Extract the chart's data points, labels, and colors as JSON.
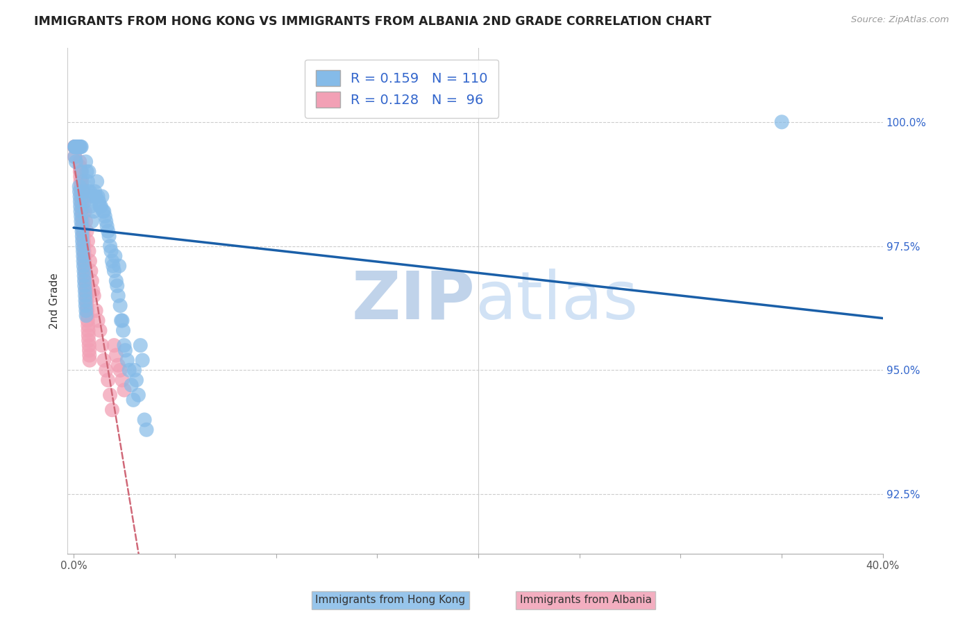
{
  "title": "IMMIGRANTS FROM HONG KONG VS IMMIGRANTS FROM ALBANIA 2ND GRADE CORRELATION CHART",
  "source": "Source: ZipAtlas.com",
  "ylabel": "2nd Grade",
  "xlim": [
    -0.3,
    40.0
  ],
  "ylim": [
    91.3,
    101.5
  ],
  "yticks": [
    92.5,
    95.0,
    97.5,
    100.0
  ],
  "xticks": [
    0.0,
    20.0,
    40.0
  ],
  "xtick_labels": [
    "0.0%",
    "",
    "40.0%"
  ],
  "ytick_labels": [
    "92.5%",
    "95.0%",
    "97.5%",
    "100.0%"
  ],
  "hk_color": "#85BBE8",
  "alb_color": "#F2A0B5",
  "hk_trend_color": "#1A5FA8",
  "alb_trend_color": "#D06878",
  "hk_R": 0.159,
  "hk_N": 110,
  "alb_R": 0.128,
  "alb_N": 96,
  "legend_text_color": "#3366CC",
  "watermark_zip": "ZIP",
  "watermark_atlas": "atlas",
  "watermark_color_zip": "#B8CEEA",
  "watermark_color_atlas": "#C8DCF0",
  "grid_color": "#CCCCCC",
  "hk_x": [
    0.05,
    0.07,
    0.08,
    0.09,
    0.1,
    0.12,
    0.13,
    0.14,
    0.15,
    0.16,
    0.17,
    0.18,
    0.19,
    0.2,
    0.21,
    0.22,
    0.23,
    0.24,
    0.25,
    0.26,
    0.27,
    0.3,
    0.35,
    0.38,
    0.4,
    0.45,
    0.5,
    0.55,
    0.6,
    0.65,
    0.7,
    0.72,
    0.75,
    0.8,
    0.85,
    0.9,
    0.95,
    1.0,
    1.05,
    1.1,
    1.15,
    1.2,
    1.25,
    1.3,
    1.35,
    1.4,
    1.45,
    1.5,
    1.55,
    1.6,
    1.65,
    1.7,
    1.75,
    1.8,
    1.85,
    1.9,
    1.95,
    2.0,
    2.05,
    2.1,
    2.15,
    2.2,
    2.25,
    2.3,
    2.35,
    2.4,
    2.45,
    2.5,
    2.55,
    2.65,
    2.75,
    2.85,
    2.95,
    3.0,
    3.1,
    3.2,
    3.3,
    3.4,
    3.5,
    3.6,
    0.06,
    0.11,
    0.28,
    0.29,
    0.31,
    0.32,
    0.33,
    0.34,
    0.36,
    0.37,
    0.39,
    0.41,
    0.42,
    0.43,
    0.44,
    0.46,
    0.47,
    0.48,
    0.49,
    0.51,
    0.52,
    0.53,
    0.54,
    0.56,
    0.57,
    0.58,
    0.59,
    0.61,
    0.62,
    35.0
  ],
  "hk_y": [
    99.5,
    99.5,
    99.5,
    99.5,
    99.5,
    99.5,
    99.5,
    99.5,
    99.5,
    99.5,
    99.5,
    99.5,
    99.5,
    99.5,
    99.5,
    99.5,
    99.5,
    99.5,
    99.5,
    99.5,
    99.5,
    99.5,
    99.5,
    99.5,
    99.0,
    98.8,
    98.6,
    98.4,
    99.2,
    99.0,
    98.8,
    98.6,
    99.0,
    98.6,
    98.3,
    98.0,
    98.5,
    98.2,
    98.6,
    98.5,
    98.8,
    98.5,
    98.4,
    98.3,
    98.3,
    98.5,
    98.2,
    98.2,
    98.1,
    98.0,
    97.9,
    97.8,
    97.7,
    97.5,
    97.4,
    97.2,
    97.1,
    97.0,
    97.3,
    96.8,
    96.7,
    96.5,
    97.1,
    96.3,
    96.0,
    96.0,
    95.8,
    95.5,
    95.4,
    95.2,
    95.0,
    94.7,
    94.4,
    95.0,
    94.8,
    94.5,
    95.5,
    95.2,
    94.0,
    93.8,
    99.3,
    99.2,
    98.7,
    98.6,
    98.5,
    98.4,
    98.3,
    98.2,
    98.1,
    98.0,
    97.9,
    97.8,
    97.7,
    97.6,
    97.5,
    97.4,
    97.3,
    97.2,
    97.1,
    97.0,
    96.9,
    96.8,
    96.7,
    96.6,
    96.5,
    96.4,
    96.3,
    96.2,
    96.1,
    100.0
  ],
  "alb_x": [
    0.04,
    0.06,
    0.07,
    0.08,
    0.09,
    0.1,
    0.11,
    0.12,
    0.13,
    0.14,
    0.15,
    0.16,
    0.17,
    0.18,
    0.19,
    0.2,
    0.21,
    0.22,
    0.23,
    0.24,
    0.25,
    0.26,
    0.27,
    0.28,
    0.29,
    0.3,
    0.35,
    0.4,
    0.45,
    0.5,
    0.55,
    0.6,
    0.65,
    0.7,
    0.75,
    0.8,
    0.85,
    0.9,
    0.95,
    1.0,
    1.1,
    1.2,
    1.3,
    1.4,
    1.5,
    1.6,
    1.7,
    1.8,
    1.9,
    2.0,
    2.1,
    2.2,
    2.3,
    2.4,
    2.5,
    0.05,
    0.31,
    0.32,
    0.33,
    0.34,
    0.36,
    0.37,
    0.38,
    0.39,
    0.41,
    0.42,
    0.43,
    0.44,
    0.46,
    0.47,
    0.48,
    0.49,
    0.51,
    0.52,
    0.53,
    0.54,
    0.56,
    0.57,
    0.58,
    0.59,
    0.61,
    0.62,
    0.63,
    0.64,
    0.66,
    0.67,
    0.68,
    0.69,
    0.71,
    0.72,
    0.73,
    0.74,
    0.76,
    0.77,
    0.78,
    0.79
  ],
  "alb_y": [
    99.5,
    99.5,
    99.5,
    99.5,
    99.5,
    99.5,
    99.5,
    99.5,
    99.5,
    99.5,
    99.5,
    99.5,
    99.5,
    99.5,
    99.5,
    99.5,
    99.5,
    99.5,
    99.5,
    99.5,
    99.5,
    99.5,
    99.5,
    99.5,
    99.5,
    99.2,
    99.0,
    98.8,
    98.6,
    98.4,
    98.2,
    98.0,
    97.8,
    97.6,
    97.4,
    97.2,
    97.0,
    96.8,
    96.6,
    96.5,
    96.2,
    96.0,
    95.8,
    95.5,
    95.2,
    95.0,
    94.8,
    94.5,
    94.2,
    95.5,
    95.3,
    95.1,
    95.0,
    94.8,
    94.6,
    99.3,
    99.1,
    99.0,
    98.9,
    98.8,
    98.7,
    98.6,
    98.5,
    98.4,
    98.3,
    98.2,
    98.1,
    98.0,
    97.9,
    97.8,
    97.7,
    97.6,
    97.5,
    97.4,
    97.3,
    97.2,
    97.1,
    97.0,
    96.9,
    96.8,
    96.7,
    96.6,
    96.5,
    96.4,
    96.3,
    96.2,
    96.1,
    96.0,
    95.9,
    95.8,
    95.7,
    95.6,
    95.5,
    95.4,
    95.3,
    95.2
  ],
  "hk_trend_x": [
    0.0,
    40.0
  ],
  "alb_trend_x": [
    0.0,
    3.0
  ]
}
